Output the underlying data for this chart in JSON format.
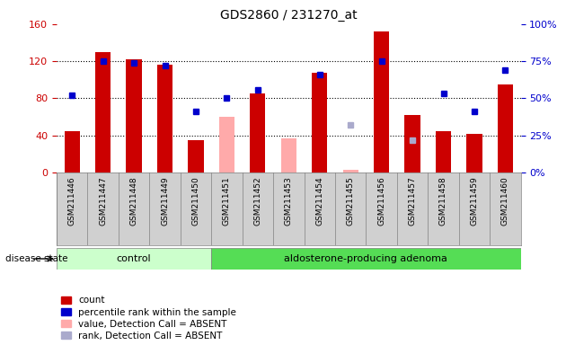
{
  "title": "GDS2860 / 231270_at",
  "samples": [
    "GSM211446",
    "GSM211447",
    "GSM211448",
    "GSM211449",
    "GSM211450",
    "GSM211451",
    "GSM211452",
    "GSM211453",
    "GSM211454",
    "GSM211455",
    "GSM211456",
    "GSM211457",
    "GSM211458",
    "GSM211459",
    "GSM211460"
  ],
  "count_values": [
    45,
    130,
    122,
    116,
    35,
    null,
    85,
    null,
    108,
    null,
    152,
    62,
    45,
    42,
    95
  ],
  "count_absent": [
    null,
    null,
    null,
    null,
    null,
    60,
    null,
    37,
    null,
    3,
    null,
    null,
    null,
    null,
    null
  ],
  "rank_values": [
    52,
    75,
    74,
    72,
    41,
    50,
    56,
    null,
    66,
    null,
    75,
    null,
    53,
    41,
    69
  ],
  "rank_absent": [
    null,
    null,
    null,
    null,
    null,
    null,
    null,
    null,
    null,
    32,
    null,
    22,
    null,
    null,
    null
  ],
  "ylim_left": [
    0,
    160
  ],
  "ylim_right": [
    0,
    100
  ],
  "yticks_left": [
    0,
    40,
    80,
    120,
    160
  ],
  "yticks_right": [
    0,
    25,
    50,
    75,
    100
  ],
  "bar_color": "#cc0000",
  "bar_absent_color": "#ffaaaa",
  "rank_color": "#0000cc",
  "rank_absent_color": "#aaaacc",
  "group1_label": "control",
  "group2_label": "aldosterone-producing adenoma",
  "group1_count": 5,
  "group2_count": 10,
  "disease_state_label": "disease state",
  "group1_bg": "#ccffcc",
  "group2_bg": "#55dd55",
  "legend_labels": [
    "count",
    "percentile rank within the sample",
    "value, Detection Call = ABSENT",
    "rank, Detection Call = ABSENT"
  ],
  "legend_colors": [
    "#cc0000",
    "#0000cc",
    "#ffaaaa",
    "#aaaacc"
  ],
  "bg_color": "#d0d0d0",
  "plot_bg": "#ffffff",
  "title_color": "#000000",
  "axis_label_color_left": "#cc0000",
  "axis_label_color_right": "#0000cc",
  "bar_width": 0.5
}
